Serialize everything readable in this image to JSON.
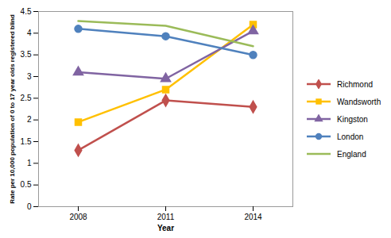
{
  "chart_data": {
    "type": "line",
    "x_label": "Year",
    "y_label": "Rate per 10,000 population of 0 to 17 year olds registered blind",
    "categories": [
      "2008",
      "2011",
      "2014"
    ],
    "series": [
      {
        "name": "Richmond",
        "color": "#c0504d",
        "marker": "diamond",
        "values": [
          1.3,
          2.45,
          2.3
        ]
      },
      {
        "name": "Wandsworth",
        "color": "#ffc000",
        "marker": "square",
        "values": [
          1.95,
          2.7,
          4.2
        ]
      },
      {
        "name": "Kingston",
        "color": "#8064a2",
        "marker": "triangle",
        "values": [
          3.1,
          2.95,
          4.05
        ]
      },
      {
        "name": "London",
        "color": "#4f81bd",
        "marker": "circle",
        "values": [
          4.1,
          3.93,
          3.5
        ]
      },
      {
        "name": "England",
        "color": "#9bbb59",
        "marker": "none",
        "values": [
          4.28,
          4.17,
          3.7
        ]
      }
    ],
    "ylim": [
      0,
      4.5
    ],
    "yticks": [
      0,
      0.5,
      1,
      1.5,
      2,
      2.5,
      3,
      3.5,
      4,
      4.5
    ],
    "grid": false,
    "legend": "right"
  }
}
